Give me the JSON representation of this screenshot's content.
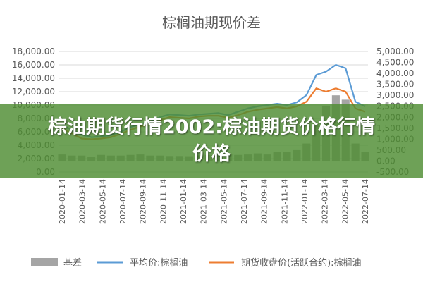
{
  "chart_data": {
    "type": "line",
    "title": "棕榈油期现价差",
    "y_left": {
      "ylim": [
        0,
        18000
      ],
      "ticks": [
        "18,000.00",
        "16,000.00",
        "14,000.00",
        "12,000.00",
        "10,000.00",
        "8,000.00",
        "6,000.00",
        "4,000.00",
        "2,000.00",
        "0.00"
      ]
    },
    "y_right": {
      "ylim": [
        -500,
        5000
      ],
      "ticks": [
        "5,000.00",
        "4,500.00",
        "4,000.00",
        "3,500.00",
        "3,000.00",
        "2,500.00",
        "2,000.00",
        "1,500.00",
        "1,000.00",
        "500.00",
        "0.00",
        "-500.00"
      ]
    },
    "x_ticks": [
      "2020-01-14",
      "2020-03-14",
      "2020-05-14",
      "2020-07-14",
      "2020-09-14",
      "2020-11-14",
      "2021-01-14",
      "2021-03-14",
      "2021-05-14",
      "2021-07-14",
      "2021-09-14",
      "2021-11-14",
      "2022-01-14",
      "2022-03-14",
      "2022-05-14",
      "2022-07-14"
    ],
    "x": [
      "2020-01-14",
      "2020-02-14",
      "2020-03-14",
      "2020-04-14",
      "2020-05-14",
      "2020-06-14",
      "2020-07-14",
      "2020-08-14",
      "2020-09-14",
      "2020-10-14",
      "2020-11-14",
      "2020-12-14",
      "2021-01-14",
      "2021-02-14",
      "2021-03-14",
      "2021-04-14",
      "2021-05-14",
      "2021-06-14",
      "2021-07-14",
      "2021-08-14",
      "2021-09-14",
      "2021-10-14",
      "2021-11-14",
      "2021-12-14",
      "2022-01-14",
      "2022-02-14",
      "2022-03-14",
      "2022-04-14",
      "2022-05-14",
      "2022-06-14",
      "2022-07-14",
      "2022-08-14"
    ],
    "series": [
      {
        "name": "基差",
        "type": "bar",
        "axis": "right",
        "color": "#a5a5a5",
        "values": [
          300,
          250,
          250,
          200,
          280,
          250,
          250,
          280,
          300,
          250,
          250,
          230,
          230,
          220,
          260,
          280,
          320,
          300,
          280,
          300,
          350,
          300,
          400,
          400,
          500,
          800,
          1600,
          2500,
          3000,
          2800,
          800,
          400
        ]
      },
      {
        "name": "平均价:棕榈油",
        "type": "line",
        "axis": "left",
        "color": "#5b9bd5",
        "values": [
          7000,
          6300,
          5600,
          5200,
          5300,
          5500,
          6000,
          6700,
          7200,
          7500,
          8200,
          8600,
          8500,
          8400,
          8600,
          8700,
          8800,
          8500,
          9000,
          9500,
          9800,
          10000,
          10200,
          10000,
          10400,
          11500,
          14500,
          15000,
          16000,
          15500,
          10500,
          9800
        ]
      },
      {
        "name": "期货收盘价(活跃合约):棕榈油",
        "type": "line",
        "axis": "left",
        "color": "#ed7d31",
        "values": [
          6500,
          5800,
          5000,
          4900,
          5000,
          5200,
          5700,
          6300,
          6800,
          7100,
          7700,
          8200,
          8100,
          8000,
          8300,
          8400,
          8400,
          8100,
          8500,
          9000,
          9300,
          9500,
          9700,
          9500,
          9800,
          10500,
          12500,
          12000,
          12500,
          12000,
          9500,
          9000
        ]
      }
    ],
    "legend_position": "bottom"
  },
  "banner": {
    "text": "棕油期货行情2002:棕油期货价格行情价格"
  }
}
